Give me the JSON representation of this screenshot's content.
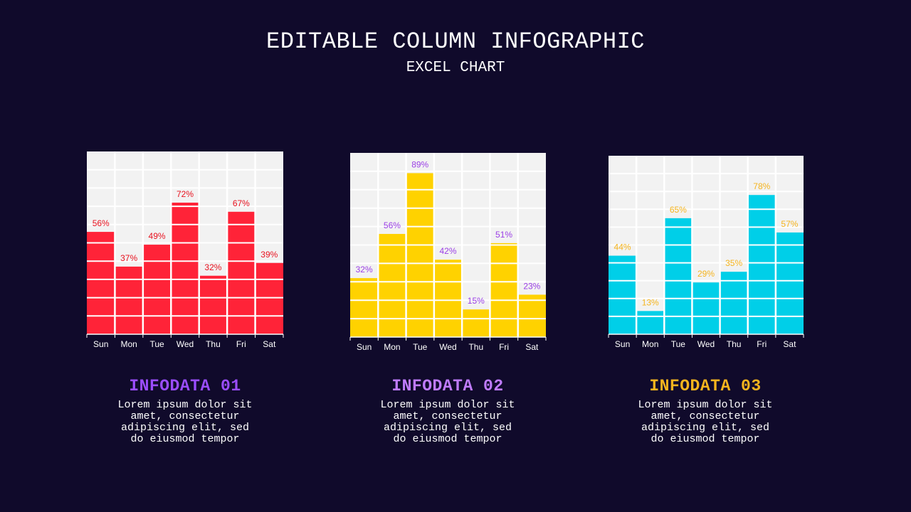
{
  "header": {
    "title": "EDITABLE COLUMN INFOGRAPHIC",
    "subtitle": "EXCEL CHART"
  },
  "colors": {
    "background": "#100a2b",
    "plot_bg": "#f2f2f2",
    "grid": "#ffffff"
  },
  "chart_data": [
    {
      "type": "bar",
      "categories": [
        "Sun",
        "Mon",
        "Tue",
        "Wed",
        "Thu",
        "Fri",
        "Sat"
      ],
      "values": [
        56,
        37,
        49,
        72,
        32,
        67,
        39
      ],
      "data_labels": [
        "56%",
        "37%",
        "49%",
        "72%",
        "32%",
        "67%",
        "39%"
      ],
      "ylim": [
        0,
        100
      ],
      "grid": true,
      "bar_color": "#ff2338",
      "label_color": "#e8121f"
    },
    {
      "type": "bar",
      "categories": [
        "Sun",
        "Mon",
        "Tue",
        "Wed",
        "Thu",
        "Fri",
        "Sat"
      ],
      "values": [
        32,
        56,
        89,
        42,
        15,
        51,
        23
      ],
      "data_labels": [
        "32%",
        "56%",
        "89%",
        "42%",
        "15%",
        "51%",
        "23%"
      ],
      "ylim": [
        0,
        100
      ],
      "grid": true,
      "bar_color": "#ffd200",
      "label_color": "#9b3fe6"
    },
    {
      "type": "bar",
      "categories": [
        "Sun",
        "Mon",
        "Tue",
        "Wed",
        "Thu",
        "Fri",
        "Sat"
      ],
      "values": [
        44,
        13,
        65,
        29,
        35,
        78,
        57
      ],
      "data_labels": [
        "44%",
        "13%",
        "65%",
        "29%",
        "35%",
        "78%",
        "57%"
      ],
      "ylim": [
        0,
        100
      ],
      "grid": true,
      "bar_color": "#00cfe8",
      "label_color": "#f5b41e"
    }
  ],
  "captions": [
    {
      "heading": "INFODATA 01",
      "color": "#9b4dff",
      "body": "Lorem ipsum dolor sit amet, consectetur adipiscing elit, sed do eiusmod tempor"
    },
    {
      "heading": "INFODATA 02",
      "color": "#c07cff",
      "body": "Lorem ipsum dolor sit amet, consectetur adipiscing elit, sed do eiusmod tempor"
    },
    {
      "heading": "INFODATA 03",
      "color": "#f5b41e",
      "body": "Lorem ipsum dolor sit amet, consectetur adipiscing elit, sed do eiusmod tempor"
    }
  ]
}
